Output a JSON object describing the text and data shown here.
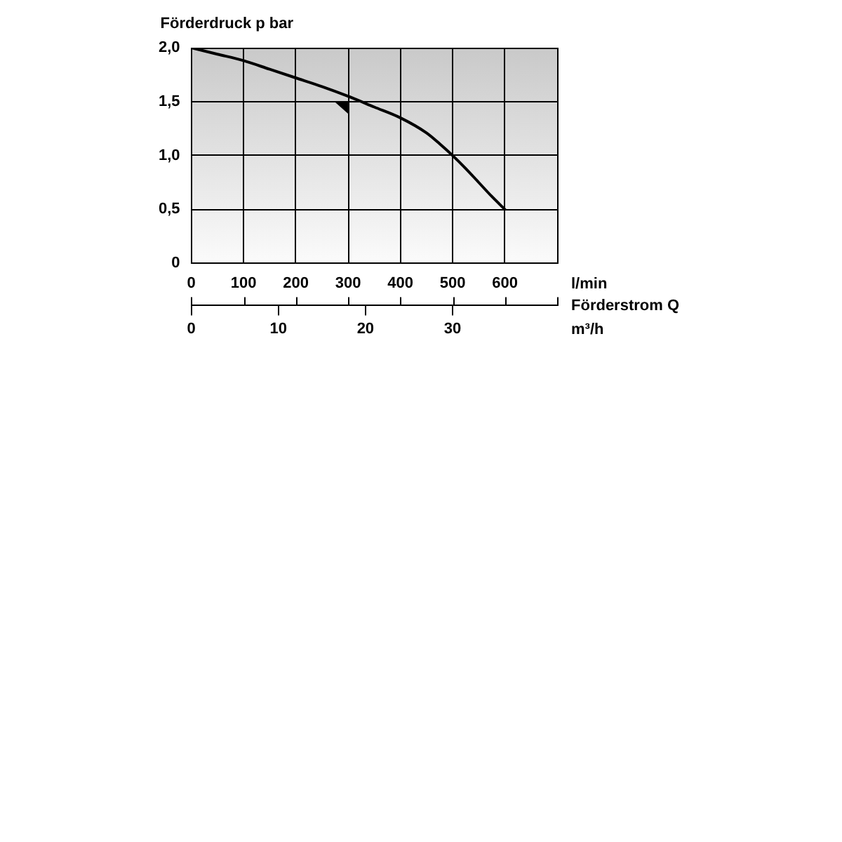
{
  "chart_data": {
    "type": "line",
    "ylabel": "Förderdruck p bar",
    "xlabel": "l/min",
    "x2label": "m³/h",
    "annotations": [
      "Förderstrom Q"
    ],
    "x": [
      0,
      50,
      100,
      150,
      200,
      250,
      300,
      350,
      400,
      450,
      475,
      500,
      525,
      550,
      575,
      600
    ],
    "values": [
      2.0,
      1.94,
      1.88,
      1.8,
      1.72,
      1.64,
      1.55,
      1.45,
      1.35,
      1.21,
      1.11,
      1.0,
      0.88,
      0.75,
      0.62,
      0.5
    ],
    "color": "#000000",
    "xlim": [
      0,
      700
    ],
    "xticks": [
      0,
      100,
      200,
      300,
      400,
      500,
      600,
      {
        "value": 700,
        "label": null
      }
    ],
    "x2lim": [
      0,
      42
    ],
    "x2ticks": [
      0,
      10,
      20,
      30
    ],
    "ylim": [
      0,
      2
    ],
    "yticks": [
      0,
      {
        "value": 0.5,
        "label": "0,5"
      },
      {
        "value": 1,
        "label": "1,0"
      },
      {
        "value": 1.5,
        "label": "1,5"
      },
      {
        "value": 2,
        "label": "2,0"
      }
    ],
    "grid": true
  }
}
